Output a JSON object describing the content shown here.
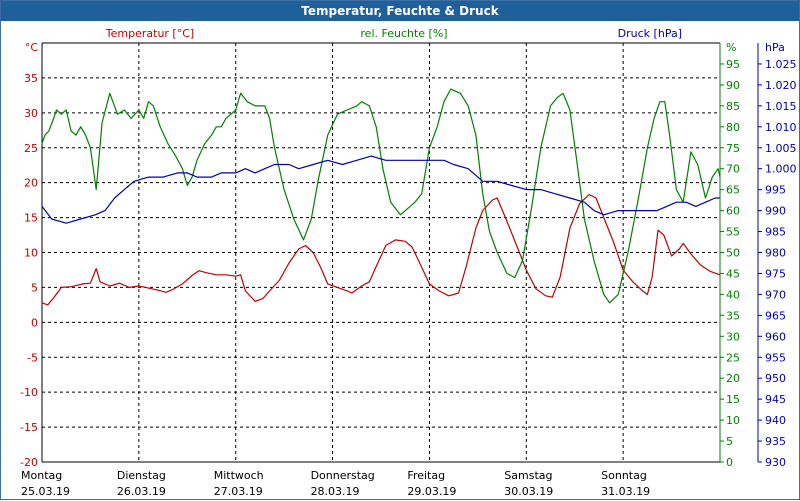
{
  "window": {
    "title": "Temperatur, Feuchte & Druck"
  },
  "chart_data": {
    "type": "line",
    "title": "Temperatur, Feuchte & Druck",
    "grid": true,
    "colors": {
      "temperature": "#c00000",
      "humidity": "#008000",
      "pressure": "#0000b0",
      "grid": "#000000"
    },
    "axes": {
      "temperature": {
        "label": "Temperatur [°C]",
        "unit": "°C",
        "range": [
          -20,
          40
        ],
        "ticks": [
          "40",
          "35",
          "30",
          "25",
          "20",
          "15",
          "10",
          "5",
          "0",
          "-5",
          "-10",
          "-15",
          "-20"
        ]
      },
      "humidity": {
        "label": "rel. Feuchte [%]",
        "unit": "%",
        "range": [
          0,
          100
        ],
        "ticks": [
          "95",
          "90",
          "85",
          "80",
          "75",
          "70",
          "65",
          "60",
          "55",
          "50",
          "45",
          "40",
          "35",
          "30",
          "25",
          "20",
          "15",
          "10",
          "5",
          "0"
        ]
      },
      "pressure": {
        "label": "Druck [hPa]",
        "unit": "hPa",
        "range": [
          930,
          1030
        ],
        "ticks": [
          "1.025",
          "1.020",
          "1.015",
          "1.010",
          "1.005",
          "1.000",
          "995",
          "990",
          "985",
          "980",
          "975",
          "970",
          "965",
          "960",
          "955",
          "950",
          "945",
          "940",
          "935",
          "930"
        ]
      }
    },
    "x_axis": {
      "range_days": [
        0,
        7
      ],
      "days": [
        {
          "name": "Montag",
          "date": "25.03.19"
        },
        {
          "name": "Dienstag",
          "date": "26.03.19"
        },
        {
          "name": "Mittwoch",
          "date": "27.03.19"
        },
        {
          "name": "Donnerstag",
          "date": "28.03.19"
        },
        {
          "name": "Freitag",
          "date": "29.03.19"
        },
        {
          "name": "Samstag",
          "date": "30.03.19"
        },
        {
          "name": "Sonntag",
          "date": "31.03.19"
        }
      ]
    },
    "series": [
      {
        "name": "Temperatur [°C]",
        "axis": "temperature",
        "points": [
          [
            0.0,
            2.8
          ],
          [
            0.06,
            2.5
          ],
          [
            0.12,
            3.5
          ],
          [
            0.2,
            5.0
          ],
          [
            0.3,
            5.1
          ],
          [
            0.42,
            5.5
          ],
          [
            0.5,
            5.6
          ],
          [
            0.56,
            7.7
          ],
          [
            0.6,
            5.8
          ],
          [
            0.7,
            5.2
          ],
          [
            0.8,
            5.6
          ],
          [
            0.9,
            5.0
          ],
          [
            1.0,
            5.2
          ],
          [
            1.1,
            4.9
          ],
          [
            1.2,
            4.6
          ],
          [
            1.28,
            4.3
          ],
          [
            1.35,
            4.7
          ],
          [
            1.45,
            5.5
          ],
          [
            1.55,
            6.7
          ],
          [
            1.62,
            7.4
          ],
          [
            1.7,
            7.1
          ],
          [
            1.8,
            6.8
          ],
          [
            1.9,
            6.8
          ],
          [
            2.0,
            6.6
          ],
          [
            2.05,
            6.8
          ],
          [
            2.1,
            4.5
          ],
          [
            2.2,
            3.0
          ],
          [
            2.28,
            3.4
          ],
          [
            2.35,
            4.5
          ],
          [
            2.45,
            6.0
          ],
          [
            2.55,
            8.5
          ],
          [
            2.65,
            10.5
          ],
          [
            2.72,
            11.0
          ],
          [
            2.8,
            10.0
          ],
          [
            2.88,
            7.8
          ],
          [
            2.95,
            5.5
          ],
          [
            3.05,
            5.0
          ],
          [
            3.15,
            4.5
          ],
          [
            3.2,
            4.2
          ],
          [
            3.3,
            5.2
          ],
          [
            3.38,
            5.8
          ],
          [
            3.45,
            8.0
          ],
          [
            3.55,
            11.0
          ],
          [
            3.65,
            11.8
          ],
          [
            3.75,
            11.6
          ],
          [
            3.82,
            10.8
          ],
          [
            3.9,
            8.5
          ],
          [
            4.0,
            5.5
          ],
          [
            4.1,
            4.5
          ],
          [
            4.2,
            3.8
          ],
          [
            4.3,
            4.2
          ],
          [
            4.38,
            8.0
          ],
          [
            4.48,
            13.5
          ],
          [
            4.55,
            16.0
          ],
          [
            4.65,
            17.5
          ],
          [
            4.7,
            17.8
          ],
          [
            4.8,
            14.5
          ],
          [
            4.9,
            11.0
          ],
          [
            5.0,
            7.5
          ],
          [
            5.1,
            4.8
          ],
          [
            5.2,
            3.8
          ],
          [
            5.27,
            3.6
          ],
          [
            5.35,
            6.5
          ],
          [
            5.45,
            13.5
          ],
          [
            5.55,
            17.0
          ],
          [
            5.65,
            18.3
          ],
          [
            5.72,
            17.8
          ],
          [
            5.8,
            15.0
          ],
          [
            5.9,
            11.5
          ],
          [
            6.0,
            7.5
          ],
          [
            6.1,
            5.8
          ],
          [
            6.2,
            4.5
          ],
          [
            6.25,
            4.0
          ],
          [
            6.3,
            6.5
          ],
          [
            6.36,
            13.2
          ],
          [
            6.42,
            12.5
          ],
          [
            6.5,
            9.5
          ],
          [
            6.58,
            10.5
          ],
          [
            6.62,
            11.3
          ],
          [
            6.7,
            9.8
          ],
          [
            6.8,
            8.2
          ],
          [
            6.9,
            7.3
          ],
          [
            7.0,
            6.8
          ]
        ]
      },
      {
        "name": "rel. Feuchte [%]",
        "axis": "humidity",
        "points": [
          [
            0.0,
            76
          ],
          [
            0.03,
            78
          ],
          [
            0.07,
            79
          ],
          [
            0.12,
            82
          ],
          [
            0.15,
            84
          ],
          [
            0.2,
            83
          ],
          [
            0.25,
            84
          ],
          [
            0.3,
            79
          ],
          [
            0.35,
            78
          ],
          [
            0.4,
            80
          ],
          [
            0.45,
            78
          ],
          [
            0.5,
            75
          ],
          [
            0.56,
            65
          ],
          [
            0.62,
            81
          ],
          [
            0.7,
            88
          ],
          [
            0.78,
            83
          ],
          [
            0.85,
            84
          ],
          [
            0.92,
            82
          ],
          [
            1.0,
            84
          ],
          [
            1.05,
            82
          ],
          [
            1.1,
            86
          ],
          [
            1.15,
            85
          ],
          [
            1.22,
            80
          ],
          [
            1.3,
            76
          ],
          [
            1.38,
            73
          ],
          [
            1.45,
            70
          ],
          [
            1.5,
            66
          ],
          [
            1.55,
            68
          ],
          [
            1.6,
            72
          ],
          [
            1.68,
            76
          ],
          [
            1.75,
            78
          ],
          [
            1.8,
            80
          ],
          [
            1.85,
            80
          ],
          [
            1.9,
            82
          ],
          [
            1.95,
            83
          ],
          [
            2.0,
            84
          ],
          [
            2.05,
            88
          ],
          [
            2.12,
            86
          ],
          [
            2.2,
            85
          ],
          [
            2.3,
            85
          ],
          [
            2.35,
            82
          ],
          [
            2.4,
            75
          ],
          [
            2.5,
            65
          ],
          [
            2.6,
            58
          ],
          [
            2.7,
            53
          ],
          [
            2.78,
            58
          ],
          [
            2.85,
            67
          ],
          [
            2.95,
            78
          ],
          [
            3.05,
            83
          ],
          [
            3.15,
            84
          ],
          [
            3.25,
            85
          ],
          [
            3.3,
            86
          ],
          [
            3.38,
            85
          ],
          [
            3.45,
            80
          ],
          [
            3.52,
            70
          ],
          [
            3.6,
            62
          ],
          [
            3.7,
            59
          ],
          [
            3.8,
            61
          ],
          [
            3.85,
            62
          ],
          [
            3.92,
            64
          ],
          [
            4.0,
            75
          ],
          [
            4.08,
            80
          ],
          [
            4.15,
            86
          ],
          [
            4.22,
            89
          ],
          [
            4.32,
            88
          ],
          [
            4.4,
            85
          ],
          [
            4.48,
            78
          ],
          [
            4.55,
            64
          ],
          [
            4.62,
            55
          ],
          [
            4.7,
            50
          ],
          [
            4.8,
            45
          ],
          [
            4.88,
            44
          ],
          [
            4.96,
            48
          ],
          [
            5.05,
            60
          ],
          [
            5.15,
            75
          ],
          [
            5.25,
            85
          ],
          [
            5.32,
            87
          ],
          [
            5.38,
            88
          ],
          [
            5.45,
            84
          ],
          [
            5.52,
            72
          ],
          [
            5.6,
            58
          ],
          [
            5.7,
            48
          ],
          [
            5.8,
            40
          ],
          [
            5.86,
            38
          ],
          [
            5.95,
            40
          ],
          [
            6.05,
            50
          ],
          [
            6.15,
            62
          ],
          [
            6.25,
            75
          ],
          [
            6.32,
            82
          ],
          [
            6.38,
            86
          ],
          [
            6.43,
            86
          ],
          [
            6.48,
            78
          ],
          [
            6.55,
            65
          ],
          [
            6.62,
            62
          ],
          [
            6.7,
            74
          ],
          [
            6.77,
            71
          ],
          [
            6.85,
            63
          ],
          [
            6.92,
            68
          ],
          [
            6.98,
            70
          ],
          [
            7.0,
            68
          ]
        ]
      },
      {
        "name": "Druck [hPa]",
        "axis": "pressure",
        "points": [
          [
            0.0,
            991
          ],
          [
            0.1,
            988
          ],
          [
            0.25,
            987
          ],
          [
            0.4,
            988
          ],
          [
            0.55,
            989
          ],
          [
            0.65,
            990
          ],
          [
            0.75,
            993
          ],
          [
            0.85,
            995
          ],
          [
            0.95,
            997
          ],
          [
            1.1,
            998
          ],
          [
            1.25,
            998
          ],
          [
            1.4,
            999
          ],
          [
            1.5,
            999
          ],
          [
            1.6,
            998
          ],
          [
            1.75,
            998
          ],
          [
            1.85,
            999
          ],
          [
            2.0,
            999
          ],
          [
            2.1,
            1000
          ],
          [
            2.2,
            999
          ],
          [
            2.3,
            1000
          ],
          [
            2.4,
            1001
          ],
          [
            2.55,
            1001
          ],
          [
            2.65,
            1000
          ],
          [
            2.8,
            1001
          ],
          [
            2.95,
            1002
          ],
          [
            3.1,
            1001
          ],
          [
            3.25,
            1002
          ],
          [
            3.4,
            1003
          ],
          [
            3.55,
            1002
          ],
          [
            3.7,
            1002
          ],
          [
            3.85,
            1002
          ],
          [
            4.0,
            1002
          ],
          [
            4.15,
            1002
          ],
          [
            4.25,
            1001
          ],
          [
            4.4,
            1000
          ],
          [
            4.55,
            997
          ],
          [
            4.7,
            997
          ],
          [
            4.85,
            996
          ],
          [
            5.0,
            995
          ],
          [
            5.15,
            995
          ],
          [
            5.3,
            994
          ],
          [
            5.45,
            993
          ],
          [
            5.6,
            992
          ],
          [
            5.7,
            990
          ],
          [
            5.8,
            989
          ],
          [
            5.95,
            990
          ],
          [
            6.1,
            990
          ],
          [
            6.25,
            990
          ],
          [
            6.35,
            990
          ],
          [
            6.45,
            991
          ],
          [
            6.55,
            992
          ],
          [
            6.65,
            992
          ],
          [
            6.75,
            991
          ],
          [
            6.85,
            992
          ],
          [
            6.95,
            993
          ],
          [
            7.0,
            993
          ]
        ]
      }
    ]
  }
}
